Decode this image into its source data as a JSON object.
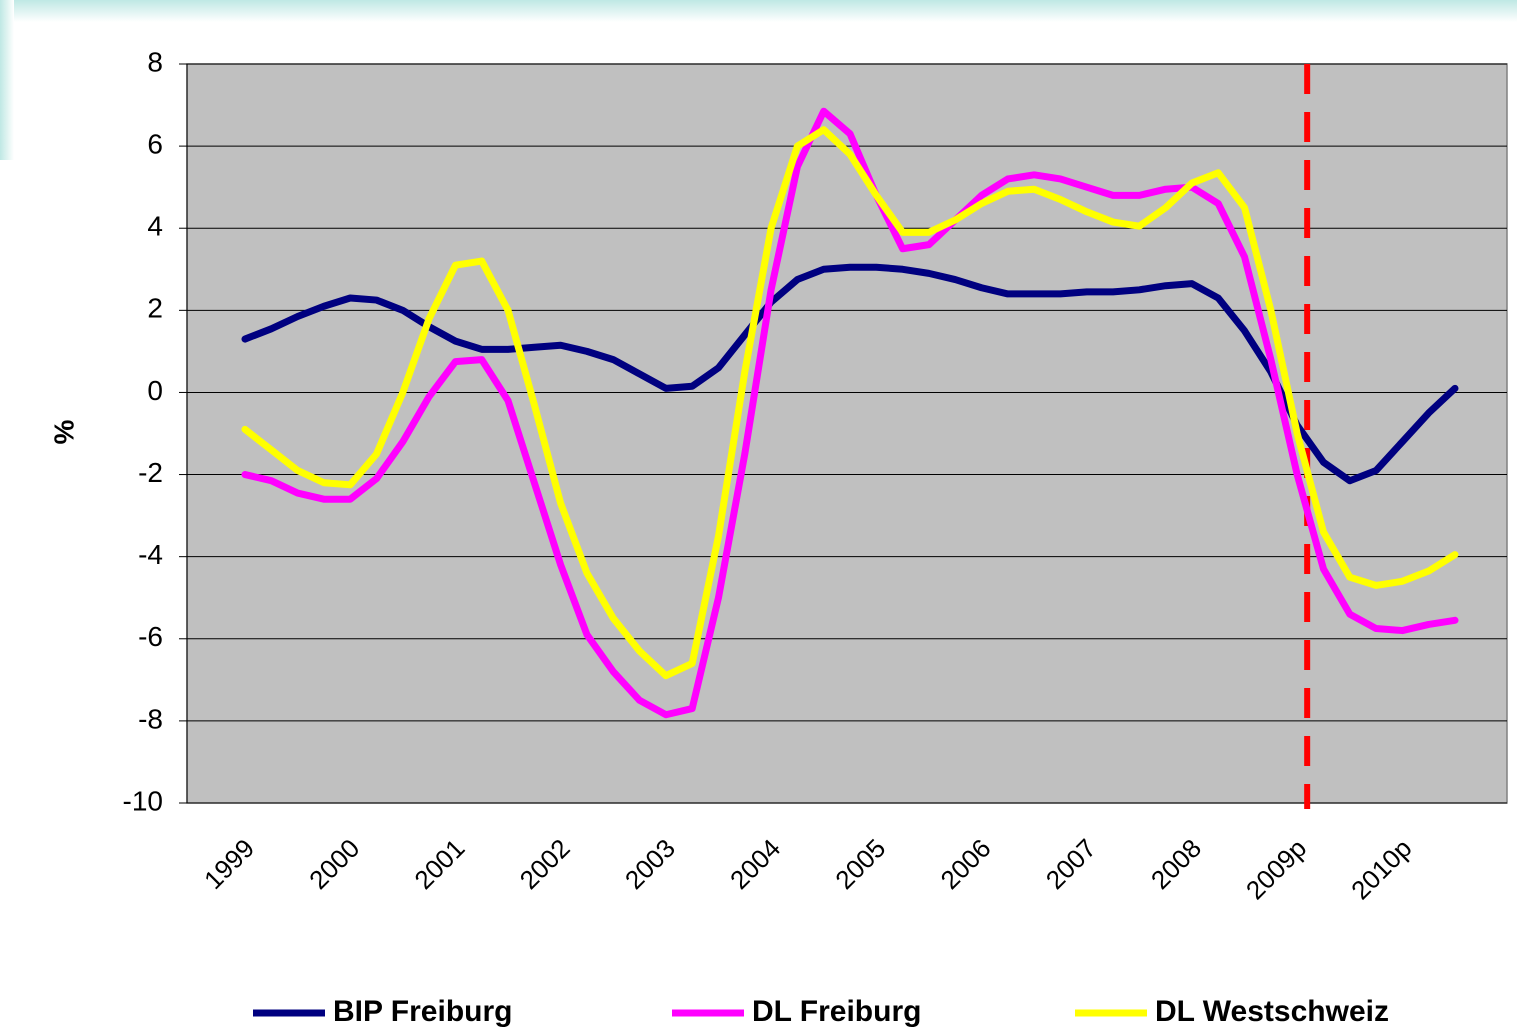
{
  "chart_data": {
    "type": "line",
    "ylabel": "%",
    "categories": [
      "1999",
      null,
      null,
      null,
      "2000",
      null,
      null,
      null,
      "2001",
      null,
      null,
      null,
      "2002",
      null,
      null,
      null,
      "2003",
      null,
      null,
      null,
      "2004",
      null,
      null,
      null,
      "2005",
      null,
      null,
      null,
      "2006",
      null,
      null,
      null,
      "2007",
      null,
      null,
      null,
      "2008",
      null,
      null,
      null,
      "2009p",
      null,
      null,
      null,
      "2010p",
      null,
      null
    ],
    "series": [
      {
        "name": "BIP Freiburg",
        "color": "#000080",
        "values": [
          1.3,
          1.55,
          1.85,
          2.1,
          2.3,
          2.25,
          2.0,
          1.6,
          1.25,
          1.05,
          1.05,
          1.1,
          1.15,
          1.0,
          0.8,
          0.45,
          0.1,
          0.15,
          0.6,
          1.4,
          2.2,
          2.75,
          3.0,
          3.05,
          3.05,
          3.0,
          2.9,
          2.75,
          2.55,
          2.4,
          2.4,
          2.4,
          2.45,
          2.45,
          2.5,
          2.6,
          2.65,
          2.3,
          1.5,
          0.5,
          -0.8,
          -1.7,
          -2.15,
          -1.9,
          -1.2,
          -0.5,
          0.1
        ]
      },
      {
        "name": "DL Freiburg",
        "color": "#ff00ff",
        "values": [
          -2.0,
          -2.15,
          -2.45,
          -2.6,
          -2.6,
          -2.1,
          -1.2,
          -0.1,
          0.75,
          0.8,
          -0.2,
          -2.2,
          -4.2,
          -5.9,
          -6.8,
          -7.5,
          -7.85,
          -7.7,
          -5.0,
          -1.5,
          2.5,
          5.5,
          6.85,
          6.3,
          4.8,
          3.5,
          3.6,
          4.2,
          4.8,
          5.2,
          5.3,
          5.2,
          5.0,
          4.8,
          4.8,
          4.95,
          5.0,
          4.6,
          3.3,
          0.8,
          -2.0,
          -4.3,
          -5.4,
          -5.75,
          -5.8,
          -5.65,
          -5.55
        ]
      },
      {
        "name": "DL Westschweiz",
        "color": "#ffff00",
        "values": [
          -0.9,
          -1.4,
          -1.9,
          -2.2,
          -2.25,
          -1.5,
          0.0,
          1.8,
          3.1,
          3.2,
          2.0,
          -0.3,
          -2.7,
          -4.4,
          -5.5,
          -6.3,
          -6.9,
          -6.6,
          -3.5,
          0.5,
          4.0,
          6.0,
          6.4,
          5.8,
          4.8,
          3.9,
          3.9,
          4.2,
          4.6,
          4.9,
          4.95,
          4.7,
          4.4,
          4.15,
          4.05,
          4.5,
          5.1,
          5.35,
          4.5,
          2.0,
          -1.0,
          -3.4,
          -4.5,
          -4.7,
          -4.6,
          -4.35,
          -3.95
        ]
      }
    ],
    "ylim": [
      -10,
      8
    ],
    "yticks": [
      -10,
      -8,
      -6,
      -4,
      -2,
      0,
      2,
      4,
      6,
      8
    ],
    "grid": true,
    "plot_background": "#c0c0c0",
    "vertical_line": {
      "category": "2009p",
      "color": "#ff0000",
      "dashed": true
    },
    "legend": "bottom"
  }
}
